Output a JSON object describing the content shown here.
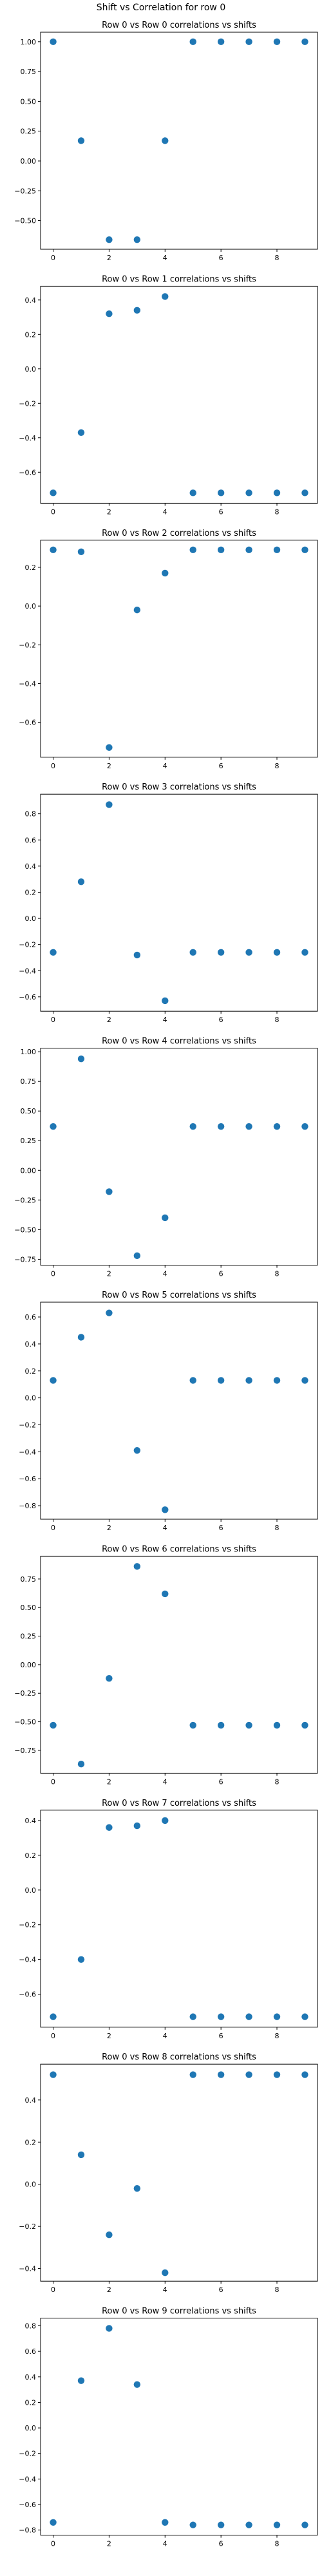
{
  "figure": {
    "suptitle": "Shift vs Correlation for row 0"
  },
  "chart_data": [
    {
      "type": "scatter",
      "title": "Row 0 vs Row 0 correlations vs shifts",
      "xlabel": "",
      "ylabel": "",
      "x": [
        0,
        1,
        2,
        3,
        4,
        5,
        6,
        7,
        8,
        9
      ],
      "y": [
        1.0,
        0.17,
        -0.66,
        -0.66,
        0.17,
        1.0,
        1.0,
        1.0,
        1.0,
        1.0
      ],
      "xlim": [
        -0.45,
        9.45
      ],
      "ylim": [
        -0.74,
        1.08
      ],
      "xticks": [
        0,
        2,
        4,
        6,
        8
      ],
      "yticks": [
        -0.5,
        -0.25,
        0.0,
        0.25,
        0.5,
        0.75,
        1.0
      ],
      "ytick_labels": [
        "−0.50",
        "−0.25",
        "0.00",
        "0.25",
        "0.50",
        "0.75",
        "1.00"
      ],
      "color": "#1f77b4"
    },
    {
      "type": "scatter",
      "title": "Row 0 vs Row 1 correlations vs shifts",
      "xlabel": "",
      "ylabel": "",
      "x": [
        0,
        1,
        2,
        3,
        4,
        5,
        6,
        7,
        8,
        9
      ],
      "y": [
        -0.72,
        -0.37,
        0.32,
        0.34,
        0.42,
        -0.72,
        -0.72,
        -0.72,
        -0.72,
        -0.72
      ],
      "xlim": [
        -0.45,
        9.45
      ],
      "ylim": [
        -0.78,
        0.48
      ],
      "xticks": [
        0,
        2,
        4,
        6,
        8
      ],
      "yticks": [
        -0.6,
        -0.4,
        -0.2,
        0.0,
        0.2,
        0.4
      ],
      "ytick_labels": [
        "−0.6",
        "−0.4",
        "−0.2",
        "0.0",
        "0.2",
        "0.4"
      ],
      "color": "#1f77b4"
    },
    {
      "type": "scatter",
      "title": "Row 0 vs Row 2 correlations vs shifts",
      "xlabel": "",
      "ylabel": "",
      "x": [
        0,
        1,
        2,
        3,
        4,
        5,
        6,
        7,
        8,
        9
      ],
      "y": [
        0.29,
        0.28,
        -0.73,
        -0.02,
        0.17,
        0.29,
        0.29,
        0.29,
        0.29,
        0.29
      ],
      "xlim": [
        -0.45,
        9.45
      ],
      "ylim": [
        -0.78,
        0.34
      ],
      "xticks": [
        0,
        2,
        4,
        6,
        8
      ],
      "yticks": [
        -0.6,
        -0.4,
        -0.2,
        0.0,
        0.2
      ],
      "ytick_labels": [
        "−0.6",
        "−0.4",
        "−0.2",
        "0.0",
        "0.2"
      ],
      "color": "#1f77b4"
    },
    {
      "type": "scatter",
      "title": "Row 0 vs Row 3 correlations vs shifts",
      "xlabel": "",
      "ylabel": "",
      "x": [
        0,
        1,
        2,
        3,
        4,
        5,
        6,
        7,
        8,
        9
      ],
      "y": [
        -0.26,
        0.28,
        0.87,
        -0.28,
        -0.63,
        -0.26,
        -0.26,
        -0.26,
        -0.26,
        -0.26
      ],
      "xlim": [
        -0.45,
        9.45
      ],
      "ylim": [
        -0.71,
        0.95
      ],
      "xticks": [
        0,
        2,
        4,
        6,
        8
      ],
      "yticks": [
        -0.6,
        -0.4,
        -0.2,
        0.0,
        0.2,
        0.4,
        0.6,
        0.8
      ],
      "ytick_labels": [
        "−0.6",
        "−0.4",
        "−0.2",
        "0.0",
        "0.2",
        "0.4",
        "0.6",
        "0.8"
      ],
      "color": "#1f77b4"
    },
    {
      "type": "scatter",
      "title": "Row 0 vs Row 4 correlations vs shifts",
      "xlabel": "",
      "ylabel": "",
      "x": [
        0,
        1,
        2,
        3,
        4,
        5,
        6,
        7,
        8,
        9
      ],
      "y": [
        0.37,
        0.94,
        -0.18,
        -0.72,
        -0.4,
        0.37,
        0.37,
        0.37,
        0.37,
        0.37
      ],
      "xlim": [
        -0.45,
        9.45
      ],
      "ylim": [
        -0.8,
        1.03
      ],
      "xticks": [
        0,
        2,
        4,
        6,
        8
      ],
      "yticks": [
        -0.75,
        -0.5,
        -0.25,
        0.0,
        0.25,
        0.5,
        0.75,
        1.0
      ],
      "ytick_labels": [
        "−0.75",
        "−0.50",
        "−0.25",
        "0.00",
        "0.25",
        "0.50",
        "0.75",
        "1.00"
      ],
      "color": "#1f77b4"
    },
    {
      "type": "scatter",
      "title": "Row 0 vs Row 5 correlations vs shifts",
      "xlabel": "",
      "ylabel": "",
      "x": [
        0,
        1,
        2,
        3,
        4,
        5,
        6,
        7,
        8,
        9
      ],
      "y": [
        0.13,
        0.45,
        0.63,
        -0.39,
        -0.83,
        0.13,
        0.13,
        0.13,
        0.13,
        0.13
      ],
      "xlim": [
        -0.45,
        9.45
      ],
      "ylim": [
        -0.9,
        0.71
      ],
      "xticks": [
        0,
        2,
        4,
        6,
        8
      ],
      "yticks": [
        -0.8,
        -0.6,
        -0.4,
        -0.2,
        0.0,
        0.2,
        0.4,
        0.6
      ],
      "ytick_labels": [
        "−0.8",
        "−0.6",
        "−0.4",
        "−0.2",
        "0.0",
        "0.2",
        "0.4",
        "0.6"
      ],
      "color": "#1f77b4"
    },
    {
      "type": "scatter",
      "title": "Row 0 vs Row 6 correlations vs shifts",
      "xlabel": "",
      "ylabel": "",
      "x": [
        0,
        1,
        2,
        3,
        4,
        5,
        6,
        7,
        8,
        9
      ],
      "y": [
        -0.53,
        -0.87,
        -0.12,
        0.86,
        0.62,
        -0.53,
        -0.53,
        -0.53,
        -0.53,
        -0.53
      ],
      "xlim": [
        -0.45,
        9.45
      ],
      "ylim": [
        -0.95,
        0.95
      ],
      "xticks": [
        0,
        2,
        4,
        6,
        8
      ],
      "yticks": [
        -0.75,
        -0.5,
        -0.25,
        0.0,
        0.25,
        0.5,
        0.75
      ],
      "ytick_labels": [
        "−0.75",
        "−0.50",
        "−0.25",
        "0.00",
        "0.25",
        "0.50",
        "0.75"
      ],
      "color": "#1f77b4"
    },
    {
      "type": "scatter",
      "title": "Row 0 vs Row 7 correlations vs shifts",
      "xlabel": "",
      "ylabel": "",
      "x": [
        0,
        1,
        2,
        3,
        4,
        5,
        6,
        7,
        8,
        9
      ],
      "y": [
        -0.73,
        -0.4,
        0.36,
        0.37,
        0.4,
        -0.73,
        -0.73,
        -0.73,
        -0.73,
        -0.73
      ],
      "xlim": [
        -0.45,
        9.45
      ],
      "ylim": [
        -0.79,
        0.46
      ],
      "xticks": [
        0,
        2,
        4,
        6,
        8
      ],
      "yticks": [
        -0.6,
        -0.4,
        -0.2,
        0.0,
        0.2,
        0.4
      ],
      "ytick_labels": [
        "−0.6",
        "−0.4",
        "−0.2",
        "0.0",
        "0.2",
        "0.4"
      ],
      "color": "#1f77b4"
    },
    {
      "type": "scatter",
      "title": "Row 0 vs Row 8 correlations vs shifts",
      "xlabel": "",
      "ylabel": "",
      "x": [
        0,
        1,
        2,
        3,
        4,
        5,
        6,
        7,
        8,
        9
      ],
      "y": [
        0.52,
        0.14,
        -0.24,
        -0.02,
        -0.42,
        0.52,
        0.52,
        0.52,
        0.52,
        0.52
      ],
      "xlim": [
        -0.45,
        9.45
      ],
      "ylim": [
        -0.46,
        0.57
      ],
      "xticks": [
        0,
        2,
        4,
        6,
        8
      ],
      "yticks": [
        -0.4,
        -0.2,
        0.0,
        0.2,
        0.4
      ],
      "ytick_labels": [
        "−0.4",
        "−0.2",
        "0.0",
        "0.2",
        "0.4"
      ],
      "color": "#1f77b4"
    },
    {
      "type": "scatter",
      "title": "Row 0 vs Row 9 correlations vs shifts",
      "xlabel": "",
      "ylabel": "",
      "x": [
        0,
        1,
        2,
        3,
        4,
        5,
        6,
        7,
        8,
        9
      ],
      "y": [
        -0.74,
        0.37,
        0.78,
        0.34,
        -0.74,
        -0.76,
        -0.76,
        -0.76,
        -0.76,
        -0.76
      ],
      "xlim": [
        -0.45,
        9.45
      ],
      "ylim": [
        -0.84,
        0.86
      ],
      "xticks": [
        0,
        2,
        4,
        6,
        8
      ],
      "yticks": [
        -0.8,
        -0.6,
        -0.4,
        -0.2,
        0.0,
        0.2,
        0.4,
        0.6,
        0.8
      ],
      "ytick_labels": [
        "−0.8",
        "−0.6",
        "−0.4",
        "−0.2",
        "0.0",
        "0.2",
        "0.4",
        "0.6",
        "0.8"
      ],
      "color": "#1f77b4"
    }
  ]
}
